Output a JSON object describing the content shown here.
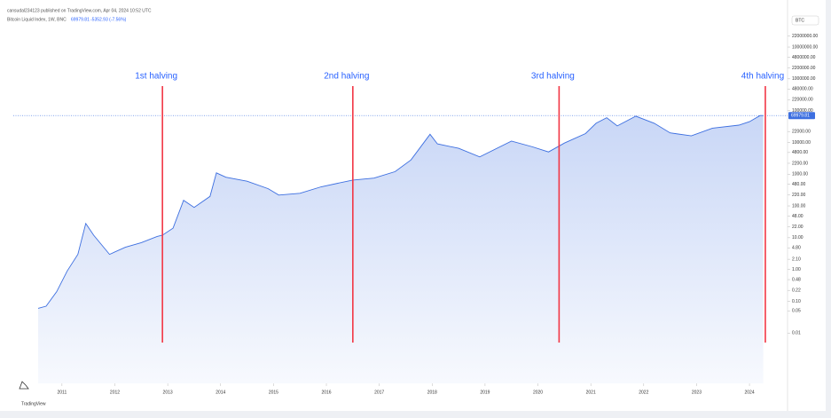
{
  "header": {
    "published": "cansudal234123 published on TradingView.com, Apr 04, 2024 10:52 UTC",
    "symbol": "Bitcoin Liquid Index, 1W, BNC",
    "price": "69979.81",
    "change": "-5352.93 (-7.56%)"
  },
  "footer": "TradingView",
  "chart_data": {
    "type": "area",
    "currency": "BTC",
    "log_scale": true,
    "grid": false,
    "color": "#3d6fe0",
    "x": [
      2010.55,
      2010.7,
      2010.9,
      2011.1,
      2011.3,
      2011.45,
      2011.6,
      2011.9,
      2012.2,
      2012.5,
      2012.8,
      2012.9,
      2013.1,
      2013.3,
      2013.5,
      2013.8,
      2013.92,
      2014.1,
      2014.5,
      2014.9,
      2015.1,
      2015.5,
      2015.9,
      2016.5,
      2016.9,
      2017.3,
      2017.6,
      2017.96,
      2018.1,
      2018.5,
      2018.9,
      2019.5,
      2019.9,
      2020.2,
      2020.5,
      2020.9,
      2021.1,
      2021.3,
      2021.5,
      2021.85,
      2022.2,
      2022.5,
      2022.9,
      2023.3,
      2023.8,
      2024.0,
      2024.2,
      2024.26
    ],
    "values": [
      0.06,
      0.07,
      0.2,
      0.9,
      3,
      28,
      12,
      3,
      5,
      7,
      11,
      12,
      20,
      150,
      90,
      200,
      1100,
      800,
      600,
      350,
      220,
      250,
      400,
      650,
      750,
      1200,
      2800,
      18000,
      9000,
      6500,
      3500,
      11000,
      7200,
      5000,
      9500,
      19000,
      40000,
      60000,
      33000,
      67000,
      40000,
      20000,
      16000,
      28000,
      35000,
      45000,
      70000,
      69979.81
    ],
    "last_value": 69979.81,
    "xlim": [
      2010.08,
      2024.72
    ],
    "xticks": [
      2011,
      2012,
      2013,
      2014,
      2015,
      2016,
      2017,
      2018,
      2019,
      2020,
      2021,
      2022,
      2023,
      2024
    ],
    "ylim": [
      0.00026,
      44000000
    ],
    "yticks": [
      {
        "value": 22000000,
        "label": "22000000.00"
      },
      {
        "value": 10000000,
        "label": "10000000.00"
      },
      {
        "value": 4800000,
        "label": "4800000.00"
      },
      {
        "value": 2200000,
        "label": "2200000.00"
      },
      {
        "value": 1000000,
        "label": "1000000.00"
      },
      {
        "value": 480000,
        "label": "480000.00"
      },
      {
        "value": 220000,
        "label": "220000.00"
      },
      {
        "value": 100000,
        "label": "100000.00"
      },
      {
        "value": 22000,
        "label": "22000.00"
      },
      {
        "value": 10000,
        "label": "10000.00"
      },
      {
        "value": 4800,
        "label": "4800.00"
      },
      {
        "value": 2200,
        "label": "2200.00"
      },
      {
        "value": 1000,
        "label": "1000.00"
      },
      {
        "value": 480,
        "label": "480.00"
      },
      {
        "value": 220,
        "label": "220.00"
      },
      {
        "value": 100,
        "label": "100.00"
      },
      {
        "value": 48,
        "label": "48.00"
      },
      {
        "value": 22,
        "label": "22.00"
      },
      {
        "value": 10,
        "label": "10.00"
      },
      {
        "value": 4.8,
        "label": "4.80"
      },
      {
        "value": 2.1,
        "label": "2.10"
      },
      {
        "value": 1,
        "label": "1.00"
      },
      {
        "value": 0.48,
        "label": "0.48"
      },
      {
        "value": 0.22,
        "label": "0.22"
      },
      {
        "value": 0.1,
        "label": "0.10"
      },
      {
        "value": 0.05,
        "label": "0.05"
      },
      {
        "value": 0.01,
        "label": "0.01"
      }
    ],
    "annotations": [
      {
        "text": "1st halving",
        "x": 2012.9
      },
      {
        "text": "2nd halving",
        "x": 2016.5
      },
      {
        "text": "3rd halving",
        "x": 2020.4
      },
      {
        "text": "4th halving",
        "x": 2024.3
      }
    ]
  }
}
